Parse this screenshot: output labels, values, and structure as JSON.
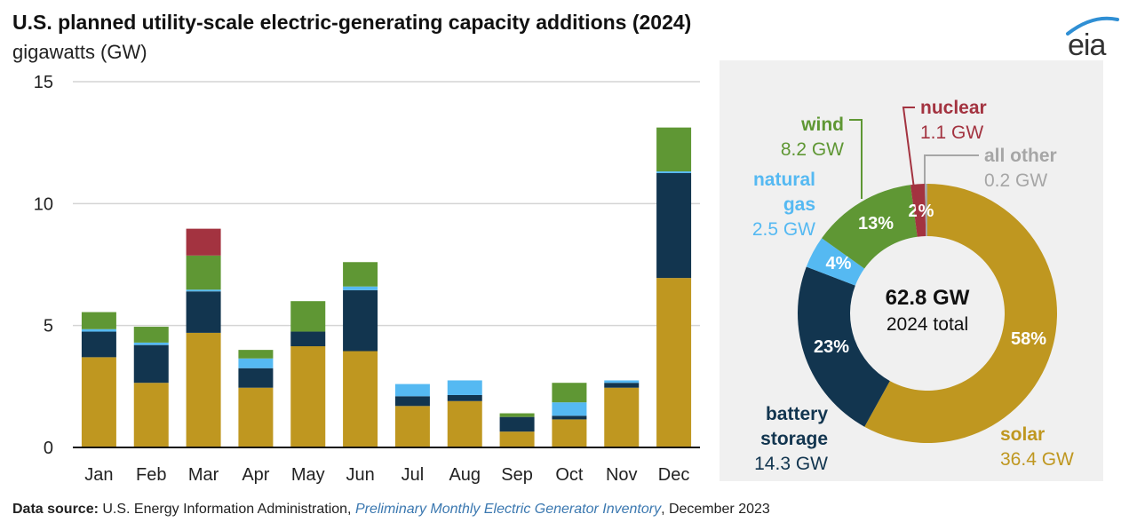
{
  "header": {
    "title": "U.S. planned utility-scale electric-generating capacity additions (2024)",
    "subtitle": "gigawatts (GW)",
    "logo_text": "eia"
  },
  "footer": {
    "source_label": "Data source:",
    "source_org": " U.S. Energy Information Administration, ",
    "source_publication": "Preliminary Monthly Electric Generator Inventory",
    "source_date": ", December 2023"
  },
  "colors": {
    "solar": "#bf9720",
    "battery storage": "#12354f",
    "natural gas": "#55b9f2",
    "wind": "#5f9734",
    "nuclear": "#a33340",
    "all other": "#a6a6a6"
  },
  "chart_data": [
    {
      "type": "bar",
      "stacked": true,
      "title": "U.S. planned utility-scale electric-generating capacity additions (2024)",
      "ylabel": "gigawatts (GW)",
      "xlabel": "",
      "ylim": [
        0,
        15
      ],
      "yticks": [
        0,
        5,
        10,
        15
      ],
      "grid": true,
      "categories": [
        "Jan",
        "Feb",
        "Mar",
        "Apr",
        "May",
        "Jun",
        "Jul",
        "Aug",
        "Sep",
        "Oct",
        "Nov",
        "Dec"
      ],
      "series": [
        {
          "name": "solar",
          "values": [
            3.7,
            2.65,
            4.7,
            2.45,
            4.15,
            3.95,
            1.7,
            1.9,
            0.65,
            1.15,
            2.45,
            6.95
          ]
        },
        {
          "name": "battery storage",
          "values": [
            1.05,
            1.55,
            1.7,
            0.8,
            0.6,
            2.5,
            0.4,
            0.25,
            0.6,
            0.15,
            0.2,
            4.3
          ]
        },
        {
          "name": "natural gas",
          "values": [
            0.1,
            0.1,
            0.07,
            0.4,
            0.0,
            0.15,
            0.5,
            0.6,
            0.0,
            0.55,
            0.1,
            0.07
          ]
        },
        {
          "name": "wind",
          "values": [
            0.7,
            0.65,
            1.4,
            0.35,
            1.25,
            1.0,
            0.0,
            0.0,
            0.15,
            0.8,
            0.0,
            1.8
          ]
        },
        {
          "name": "nuclear",
          "values": [
            0,
            0,
            1.1,
            0,
            0,
            0,
            0,
            0,
            0,
            0,
            0,
            0
          ]
        }
      ]
    },
    {
      "type": "pie",
      "donut": true,
      "center_value": "62.8 GW",
      "center_label": "2024 total",
      "slices": [
        {
          "name": "solar",
          "label": "solar",
          "value": 36.4,
          "value_text": "36.4 GW",
          "percent_text": "58%"
        },
        {
          "name": "battery storage",
          "label": "battery storage",
          "value": 14.3,
          "value_text": "14.3 GW",
          "percent_text": "23%"
        },
        {
          "name": "natural gas",
          "label": "natural gas",
          "value": 2.5,
          "value_text": "2.5 GW",
          "percent_text": "4%"
        },
        {
          "name": "wind",
          "label": "wind",
          "value": 8.2,
          "value_text": "8.2 GW",
          "percent_text": "13%"
        },
        {
          "name": "nuclear",
          "label": "nuclear",
          "value": 1.1,
          "value_text": "1.1 GW",
          "percent_text": "2%"
        },
        {
          "name": "all other",
          "label": "all other",
          "value": 0.2,
          "value_text": "0.2 GW",
          "percent_text": ""
        }
      ]
    }
  ]
}
